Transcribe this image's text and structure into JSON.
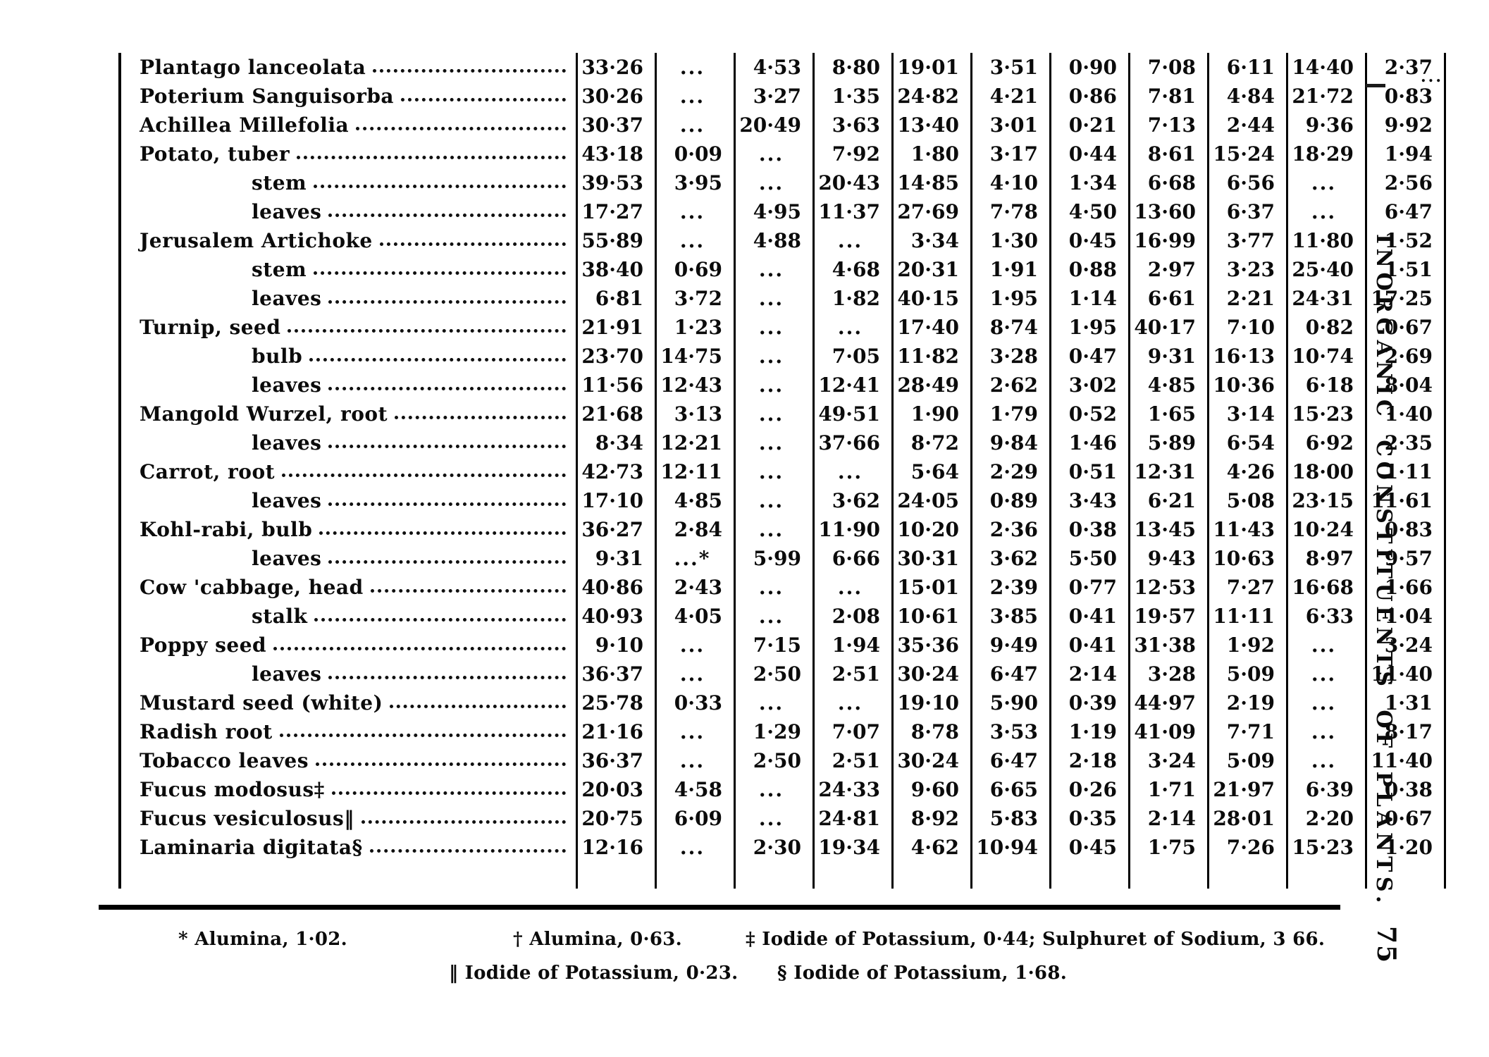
{
  "page": {
    "side_title": "INORGANIC CONSTITUENTS OF PLANTS.",
    "page_number": "75",
    "artifact_dots": "..."
  },
  "table": {
    "rows": [
      {
        "label": "Plantago lanceolata",
        "indent": false,
        "values": [
          "33·26",
          "...",
          "4·53",
          "8·80",
          "19·01",
          "3·51",
          "0·90",
          "7·08",
          "6·11",
          "14·40",
          "2·37"
        ]
      },
      {
        "label": "Poterium Sanguisorba",
        "indent": false,
        "values": [
          "30·26",
          "...",
          "3·27",
          "1·35",
          "24·82",
          "4·21",
          "0·86",
          "7·81",
          "4·84",
          "21·72",
          "0·83"
        ]
      },
      {
        "label": "Achillea Millefolia",
        "indent": false,
        "values": [
          "30·37",
          "...",
          "20·49",
          "3·63",
          "13·40",
          "3·01",
          "0·21",
          "7·13",
          "2·44",
          "9·36",
          "9·92"
        ]
      },
      {
        "label": "Potato, tuber",
        "indent": false,
        "values": [
          "43·18",
          "0·09",
          "...",
          "7·92",
          "1·80",
          "3·17",
          "0·44",
          "8·61",
          "15·24",
          "18·29",
          "1·94"
        ]
      },
      {
        "label": "stem",
        "indent": true,
        "values": [
          "39·53",
          "3·95",
          "...",
          "20·43",
          "14·85",
          "4·10",
          "1·34",
          "6·68",
          "6·56",
          "...",
          "2·56"
        ]
      },
      {
        "label": "leaves",
        "indent": true,
        "values": [
          "17·27",
          "...",
          "4·95",
          "11·37",
          "27·69",
          "7·78",
          "4·50",
          "13·60",
          "6·37",
          "...",
          "6·47"
        ]
      },
      {
        "label": "Jerusalem Artichoke",
        "indent": false,
        "values": [
          "55·89",
          "...",
          "4·88",
          "...",
          "3·34",
          "1·30",
          "0·45",
          "16·99",
          "3·77",
          "11·80",
          "1·52"
        ]
      },
      {
        "label": "stem",
        "indent": true,
        "values": [
          "38·40",
          "0·69",
          "...",
          "4·68",
          "20·31",
          "1·91",
          "0·88",
          "2·97",
          "3·23",
          "25·40",
          "1·51"
        ]
      },
      {
        "label": "leaves",
        "indent": true,
        "values": [
          "6·81",
          "3·72",
          "...",
          "1·82",
          "40·15",
          "1·95",
          "1·14",
          "6·61",
          "2·21",
          "24·31",
          "17·25"
        ]
      },
      {
        "label": "Turnip, seed",
        "indent": false,
        "values": [
          "21·91",
          "1·23",
          "...",
          "...",
          "17·40",
          "8·74",
          "1·95",
          "40·17",
          "7·10",
          "0·82",
          "0·67"
        ]
      },
      {
        "label": "bulb",
        "indent": true,
        "values": [
          "23·70",
          "14·75",
          "...",
          "7·05",
          "11·82",
          "3·28",
          "0·47",
          "9·31",
          "16·13",
          "10·74",
          "2·69"
        ]
      },
      {
        "label": "leaves",
        "indent": true,
        "values": [
          "11·56",
          "12·43",
          "...",
          "12·41",
          "28·49",
          "2·62",
          "3·02",
          "4·85",
          "10·36",
          "6·18",
          "8·04"
        ]
      },
      {
        "label": "Mangold Wurzel, root",
        "indent": false,
        "values": [
          "21·68",
          "3·13",
          "...",
          "49·51",
          "1·90",
          "1·79",
          "0·52",
          "1·65",
          "3·14",
          "15·23",
          "1·40"
        ]
      },
      {
        "label": "leaves",
        "indent": true,
        "values": [
          "8·34",
          "12·21",
          "...",
          "37·66",
          "8·72",
          "9·84",
          "1·46",
          "5·89",
          "6·54",
          "6·92",
          "2·35"
        ]
      },
      {
        "label": "Carrot, root",
        "indent": false,
        "values": [
          "42·73",
          "12·11",
          "...",
          "...",
          "5·64",
          "2·29",
          "0·51",
          "12·31",
          "4·26",
          "18·00",
          "1·11"
        ]
      },
      {
        "label": "leaves",
        "indent": true,
        "values": [
          "17·10",
          "4·85",
          "...",
          "3·62",
          "24·05",
          "0·89",
          "3·43",
          "6·21",
          "5·08",
          "23·15",
          "11·61"
        ]
      },
      {
        "label": "Kohl-rabi, bulb",
        "indent": false,
        "values": [
          "36·27",
          "2·84",
          "...",
          "11·90",
          "10·20",
          "2·36",
          "0·38",
          "13·45",
          "11·43",
          "10·24",
          "0·83"
        ]
      },
      {
        "label": "leaves",
        "indent": true,
        "values": [
          "9·31",
          "...*",
          "5·99",
          "6·66",
          "30·31",
          "3·62",
          "5·50",
          "9·43",
          "10·63",
          "8·97",
          "9·57"
        ]
      },
      {
        "label": "Cow 'cabbage, head",
        "indent": false,
        "values": [
          "40·86",
          "2·43",
          "...",
          "...",
          "15·01",
          "2·39",
          "0·77",
          "12·53",
          "7·27",
          "16·68",
          "1·66"
        ]
      },
      {
        "label": "stalk",
        "indent": true,
        "values": [
          "40·93",
          "4·05",
          "...",
          "2·08",
          "10·61",
          "3·85",
          "0·41",
          "19·57",
          "11·11",
          "6·33",
          "1·04"
        ]
      },
      {
        "label": "Poppy seed",
        "indent": false,
        "values": [
          "9·10",
          "...",
          "7·15",
          "1·94",
          "35·36",
          "9·49",
          "0·41",
          "31·38",
          "1·92",
          "...",
          "3·24"
        ]
      },
      {
        "label": "leaves",
        "indent": true,
        "values": [
          "36·37",
          "...",
          "2·50",
          "2·51",
          "30·24",
          "6·47",
          "2·14",
          "3·28",
          "5·09",
          "...",
          "11·40"
        ]
      },
      {
        "label": "Mustard seed (white)",
        "indent": false,
        "values": [
          "25·78",
          "0·33",
          "...",
          "...",
          "19·10",
          "5·90",
          "0·39",
          "44·97",
          "2·19",
          "...",
          "1·31"
        ]
      },
      {
        "label": "Radish root",
        "indent": false,
        "values": [
          "21·16",
          "...",
          "1·29",
          "7·07",
          "8·78",
          "3·53",
          "1·19",
          "41·09",
          "7·71",
          "...",
          "8·17"
        ]
      },
      {
        "label": "Tobacco leaves",
        "indent": false,
        "values": [
          "36·37",
          "...",
          "2·50",
          "2·51",
          "30·24",
          "6·47",
          "2·18",
          "3·24",
          "5·09",
          "...",
          "11·40"
        ]
      },
      {
        "label": "Fucus modosus‡",
        "indent": false,
        "values": [
          "20·03",
          "4·58",
          "...",
          "24·33",
          "9·60",
          "6·65",
          "0·26",
          "1·71",
          "21·97",
          "6·39",
          "0·38"
        ]
      },
      {
        "label": "Fucus vesiculosus‖",
        "indent": false,
        "values": [
          "20·75",
          "6·09",
          "...",
          "24·81",
          "8·92",
          "5·83",
          "0·35",
          "2·14",
          "28·01",
          "2·20",
          "0·67"
        ]
      },
      {
        "label": "Laminaria digitata§",
        "indent": false,
        "values": [
          "12·16",
          "...",
          "2·30",
          "19·34",
          "4·62",
          "10·94",
          "0·45",
          "1·75",
          "7·26",
          "15·23",
          "1·20"
        ]
      }
    ]
  },
  "footnotes": {
    "alumina_star": "* Alumina, 1·02.",
    "alumina_dagger": "† Alumina, 0·63.",
    "iodide_double_dagger": "‡ Iodide of Potassium, 0·44; Sulphuret of Sodium, 3 66.",
    "iodide_double_bar": "‖ Iodide of Potassium, 0·23.",
    "iodide_section": "§ Iodide of Potassium, 1·68."
  }
}
